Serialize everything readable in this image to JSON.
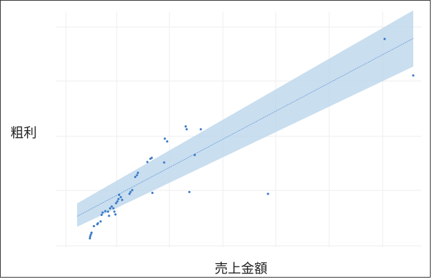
{
  "chart_data": {
    "type": "scatter",
    "title": "",
    "xlabel": "売上金額",
    "ylabel": "粗利",
    "xlim": [
      0,
      100
    ],
    "ylim": [
      0,
      100
    ],
    "grid": true,
    "legend": "none",
    "colors": {
      "points": "#3b7bc8",
      "band": "#b7d3ea",
      "line": "#3b7bc8",
      "grid": "#eeeeee"
    },
    "points": [
      [
        3.8,
        2.6
      ],
      [
        3.9,
        3.4
      ],
      [
        4.1,
        4.2
      ],
      [
        4.3,
        5.0
      ],
      [
        5.0,
        7.8
      ],
      [
        6.0,
        8.6
      ],
      [
        6.2,
        9.0
      ],
      [
        7.0,
        9.8
      ],
      [
        7.3,
        12.6
      ],
      [
        7.6,
        13.6
      ],
      [
        8.4,
        14.2
      ],
      [
        9.2,
        14.0
      ],
      [
        9.5,
        12.2
      ],
      [
        9.8,
        15.4
      ],
      [
        10.3,
        16.2
      ],
      [
        10.8,
        15.4
      ],
      [
        11.1,
        14.0
      ],
      [
        11.4,
        12.8
      ],
      [
        11.6,
        17.6
      ],
      [
        12.0,
        18.4
      ],
      [
        12.3,
        19.4
      ],
      [
        12.5,
        21.2
      ],
      [
        13.0,
        20.2
      ],
      [
        13.4,
        19.0
      ],
      [
        15.6,
        21.6
      ],
      [
        15.9,
        22.4
      ],
      [
        16.4,
        23.2
      ],
      [
        17.3,
        28.8
      ],
      [
        17.8,
        29.6
      ],
      [
        18.1,
        30.6
      ],
      [
        20.9,
        35.2
      ],
      [
        21.8,
        36.6
      ],
      [
        22.2,
        37.0
      ],
      [
        22.4,
        22.0
      ],
      [
        25.9,
        35.0
      ],
      [
        26.1,
        45.2
      ],
      [
        26.8,
        44.0
      ],
      [
        32.3,
        50.4
      ],
      [
        32.6,
        49.2
      ],
      [
        33.4,
        22.4
      ],
      [
        35.0,
        38.2
      ],
      [
        36.8,
        49.2
      ],
      [
        56.8,
        21.6
      ],
      [
        91.5,
        87.8
      ],
      [
        100.0,
        72.2
      ]
    ],
    "fit": {
      "x": [
        0,
        100
      ],
      "y": [
        12.0,
        88.0
      ]
    },
    "band": {
      "x": [
        0,
        100
      ],
      "upper": [
        17.5,
        100.0
      ],
      "lower": [
        7.5,
        76.0
      ]
    }
  }
}
